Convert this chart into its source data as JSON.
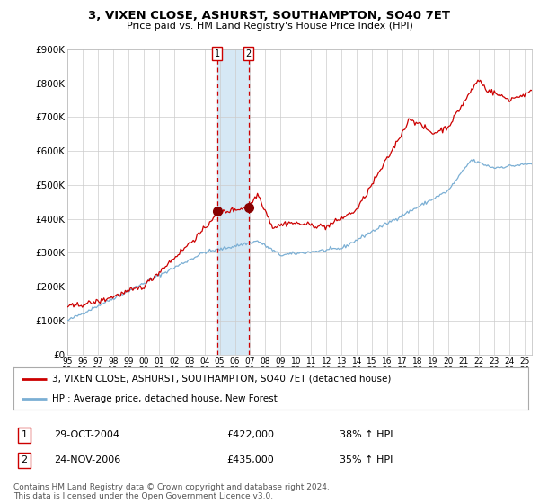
{
  "title": "3, VIXEN CLOSE, ASHURST, SOUTHAMPTON, SO40 7ET",
  "subtitle": "Price paid vs. HM Land Registry's House Price Index (HPI)",
  "legend_line1": "3, VIXEN CLOSE, ASHURST, SOUTHAMPTON, SO40 7ET (detached house)",
  "legend_line2": "HPI: Average price, detached house, New Forest",
  "footer": "Contains HM Land Registry data © Crown copyright and database right 2024.\nThis data is licensed under the Open Government Licence v3.0.",
  "sale1_date": "29-OCT-2004",
  "sale1_price": 422000,
  "sale1_label": "38% ↑ HPI",
  "sale2_date": "24-NOV-2006",
  "sale2_price": 435000,
  "sale2_label": "35% ↑ HPI",
  "hpi_color": "#7BAFD4",
  "price_color": "#CC0000",
  "marker_color": "#880000",
  "sale1_x": 2004.83,
  "sale2_x": 2006.9,
  "shading_color": "#D6E8F5",
  "dashed_color": "#CC0000",
  "ylim": [
    0,
    900000
  ],
  "xlim_start": 1995.0,
  "xlim_end": 2025.5,
  "xticks": [
    1995,
    1996,
    1997,
    1998,
    1999,
    2000,
    2001,
    2002,
    2003,
    2004,
    2005,
    2006,
    2007,
    2008,
    2009,
    2010,
    2011,
    2012,
    2013,
    2014,
    2015,
    2016,
    2017,
    2018,
    2019,
    2020,
    2021,
    2022,
    2023,
    2024,
    2025
  ],
  "yticks": [
    0,
    100000,
    200000,
    300000,
    400000,
    500000,
    600000,
    700000,
    800000,
    900000
  ],
  "ytick_labels": [
    "£0",
    "£100K",
    "£200K",
    "£300K",
    "£400K",
    "£500K",
    "£600K",
    "£700K",
    "£800K",
    "£900K"
  ]
}
